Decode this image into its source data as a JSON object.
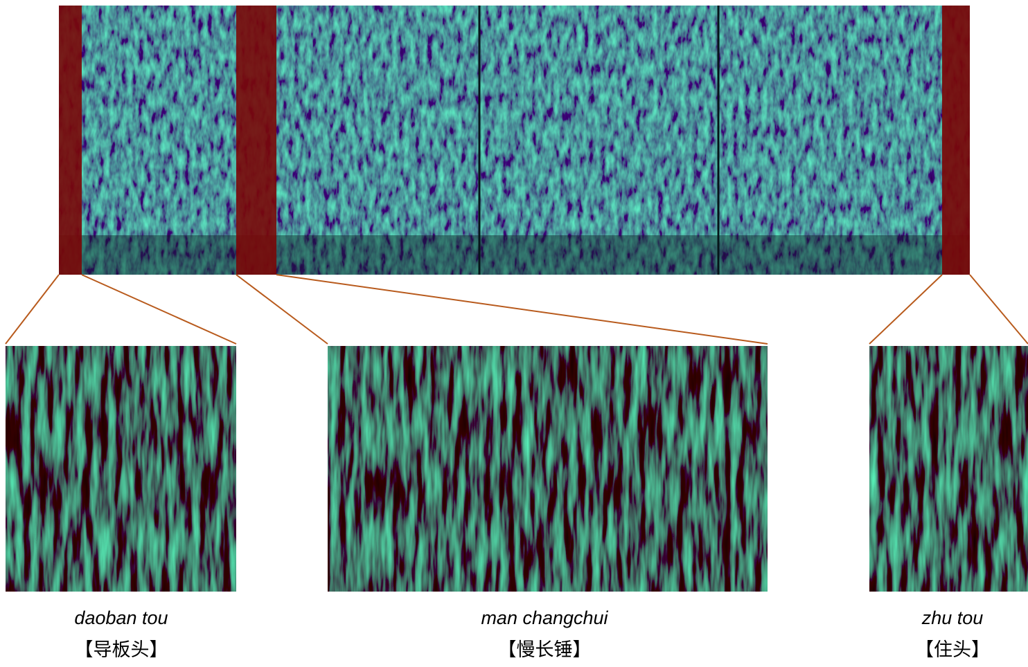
{
  "panels": [
    {
      "name": "daoban tou",
      "chinese": "【导板头】"
    },
    {
      "name": "man changchui",
      "chinese": "【慢长锤】"
    },
    {
      "name": "zhu tou",
      "chinese": "【住头】"
    }
  ]
}
